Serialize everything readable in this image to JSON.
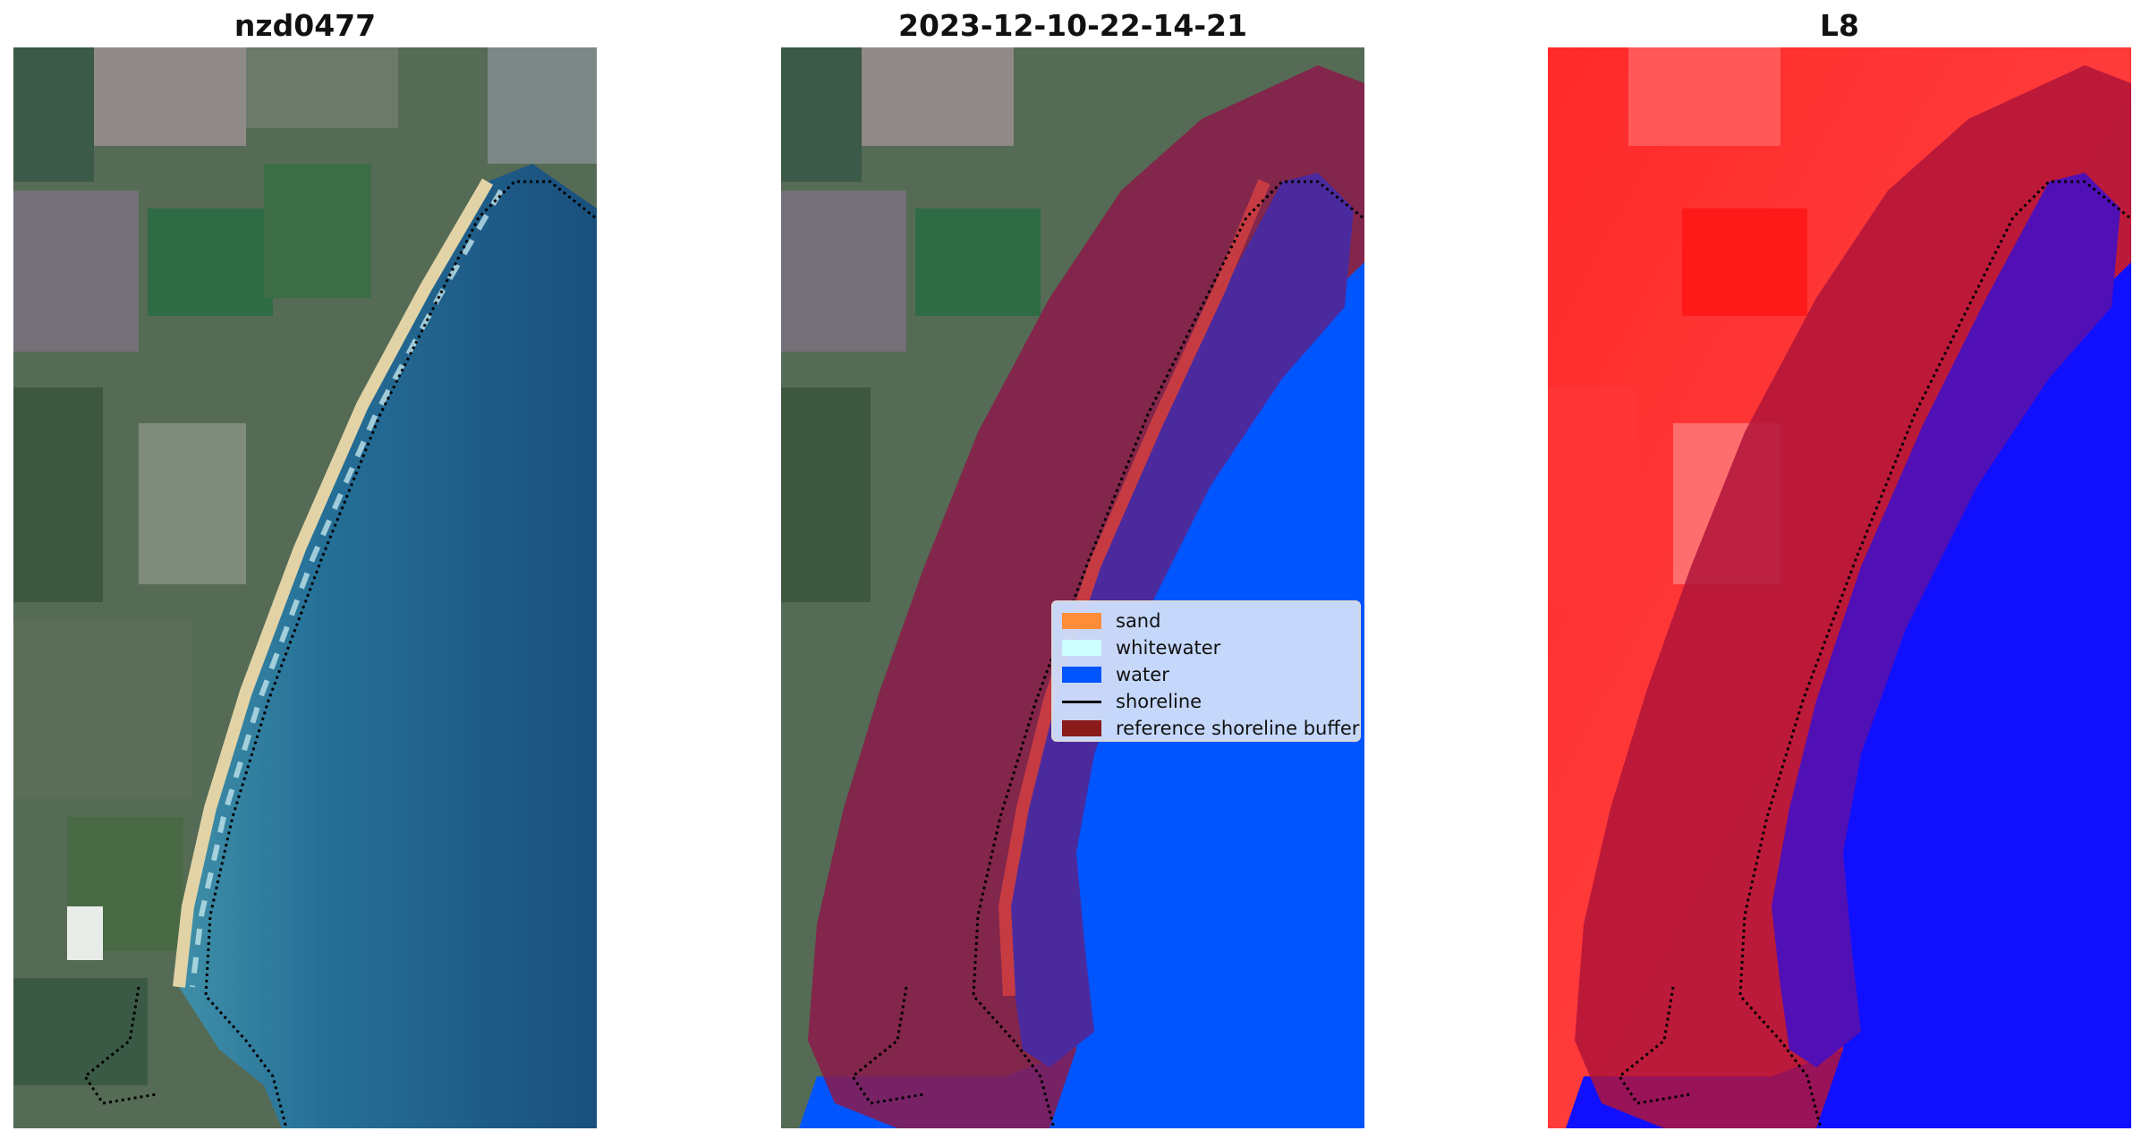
{
  "panels": [
    {
      "title": "nzd0477"
    },
    {
      "title": "2023-12-10-22-14-21"
    },
    {
      "title": "L8"
    }
  ],
  "legend": {
    "items": [
      {
        "label": "sand",
        "color": "#ff8c38",
        "kind": "patch"
      },
      {
        "label": "whitewater",
        "color": "#ccffff",
        "kind": "patch"
      },
      {
        "label": "water",
        "color": "#0055ff",
        "kind": "patch"
      },
      {
        "label": "shoreline",
        "color": "#000000",
        "kind": "line"
      },
      {
        "label": "reference shoreline buffer",
        "color": "#8b1a1a",
        "kind": "patch"
      }
    ]
  },
  "colors": {
    "rgb_water": "#1f5f86",
    "rgb_land": "#4f6b52",
    "rgb_sand": "#e2d3a6",
    "class_water": "#0055ff",
    "class_buffer": "#8b1a4a",
    "class_sand_in_buffer": "#c63b42",
    "index_land": "#ff1a1a",
    "index_water": "#1010ff"
  }
}
